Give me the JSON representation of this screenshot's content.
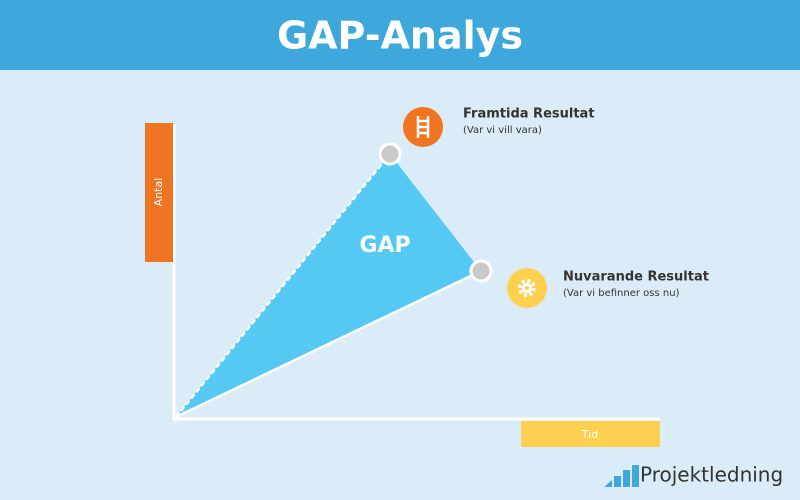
{
  "header": {
    "title": "GAP-Analys"
  },
  "axes": {
    "y_label": "Antal",
    "x_label": "Tid"
  },
  "gap_label": "GAP",
  "points": [
    {
      "title": "Framtida Resultat",
      "subtitle": "(Var vi vill vara)"
    },
    {
      "title": "Nuvarande Resultat",
      "subtitle": "(Var vi befinner oss nu)"
    }
  ],
  "logo": "Projektledning"
}
